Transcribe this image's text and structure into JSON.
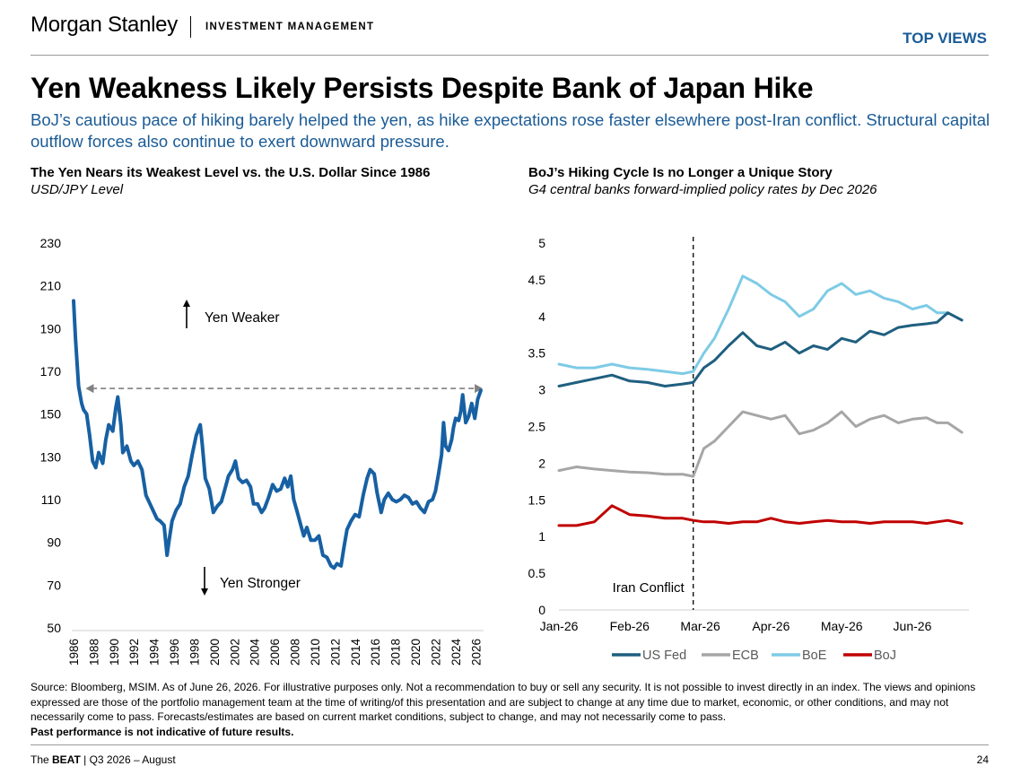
{
  "header": {
    "logo_brand": "Morgan Stanley",
    "logo_division": "INVESTMENT MANAGEMENT",
    "section_tag": "TOP VIEWS"
  },
  "headline": "Yen Weakness Likely Persists Despite Bank of Japan Hike",
  "subheadline": "BoJ’s cautious pace of hiking barely helped the yen, as hike expectations rose faster elsewhere post-Iran conflict. Structural capital outflow forces also continue to exert downward pressure.",
  "colors": {
    "accent": "#1a5b96",
    "yen_line": "#1760a3",
    "us_fed": "#1f5f7f",
    "ecb": "#a6a6a6",
    "boe": "#7ecbe6",
    "boj": "#c00000"
  },
  "chart_data": [
    {
      "type": "line",
      "title": "The Yen Nears its Weakest Level vs. the U.S. Dollar Since 1986",
      "subtitle": "USD/JPY Level",
      "xlabel": "",
      "ylabel": "",
      "ylim": [
        50,
        230
      ],
      "y_ticks": [
        "230",
        "210",
        "190",
        "170",
        "150",
        "130",
        "110",
        "90",
        "70",
        "50"
      ],
      "x_ticks": [
        "1986",
        "1988",
        "1990",
        "1992",
        "1994",
        "1996",
        "1998",
        "2000",
        "2002",
        "2004",
        "2006",
        "2008",
        "2010",
        "2012",
        "2014",
        "2016",
        "2018",
        "2020",
        "2022",
        "2024",
        "2026"
      ],
      "annotations": {
        "up": "Yen Weaker",
        "down": "Yen Stronger"
      },
      "reference_line": 162,
      "x": [
        1986.0,
        1986.2,
        1986.5,
        1986.8,
        1987.0,
        1987.3,
        1987.6,
        1987.9,
        1988.2,
        1988.5,
        1988.9,
        1989.2,
        1989.5,
        1989.9,
        1990.2,
        1990.4,
        1990.7,
        1990.9,
        1991.3,
        1991.7,
        1992.0,
        1992.4,
        1992.8,
        1993.2,
        1993.6,
        1993.9,
        1994.3,
        1994.6,
        1995.0,
        1995.3,
        1995.5,
        1995.8,
        1996.2,
        1996.6,
        1997.0,
        1997.4,
        1997.8,
        1998.2,
        1998.6,
        1998.8,
        1999.1,
        1999.5,
        1999.9,
        2000.3,
        2000.7,
        2001.0,
        2001.4,
        2001.8,
        2002.1,
        2002.4,
        2002.8,
        2003.2,
        2003.6,
        2003.9,
        2004.3,
        2004.7,
        2005.0,
        2005.4,
        2005.8,
        2006.2,
        2006.6,
        2007.0,
        2007.3,
        2007.6,
        2007.9,
        2008.2,
        2008.6,
        2008.9,
        2009.2,
        2009.6,
        2010.0,
        2010.4,
        2010.8,
        2011.2,
        2011.6,
        2011.9,
        2012.2,
        2012.6,
        2012.9,
        2013.2,
        2013.6,
        2014.0,
        2014.4,
        2014.8,
        2015.2,
        2015.5,
        2015.9,
        2016.2,
        2016.6,
        2016.9,
        2017.3,
        2017.7,
        2018.1,
        2018.5,
        2018.9,
        2019.3,
        2019.7,
        2020.1,
        2020.5,
        2020.9,
        2021.3,
        2021.7,
        2022.0,
        2022.3,
        2022.6,
        2022.8,
        2023.0,
        2023.3,
        2023.6,
        2023.8,
        2024.0,
        2024.3,
        2024.5,
        2024.7,
        2025.0,
        2025.3,
        2025.6,
        2025.9,
        2026.2,
        2026.5
      ],
      "y": [
        203,
        185,
        163,
        155,
        152,
        150,
        140,
        128,
        125,
        132,
        127,
        138,
        145,
        142,
        153,
        158,
        145,
        132,
        135,
        128,
        126,
        128,
        124,
        112,
        108,
        105,
        101,
        100,
        98,
        84,
        91,
        100,
        105,
        108,
        116,
        121,
        131,
        140,
        145,
        136,
        120,
        115,
        104,
        107,
        109,
        114,
        121,
        124,
        128,
        120,
        118,
        119,
        116,
        108,
        108,
        104,
        106,
        111,
        117,
        114,
        115,
        120,
        116,
        121,
        110,
        105,
        98,
        93,
        97,
        91,
        91,
        93,
        84,
        83,
        79,
        78,
        80,
        79,
        88,
        96,
        100,
        103,
        102,
        112,
        120,
        124,
        122,
        113,
        104,
        110,
        113,
        110,
        109,
        110,
        112,
        111,
        108,
        109,
        106,
        104,
        109,
        110,
        114,
        122,
        131,
        146,
        135,
        133,
        138,
        144,
        148,
        147,
        151,
        159,
        146,
        149,
        155,
        148,
        157,
        161
      ]
    },
    {
      "type": "line",
      "title": "BoJ’s Hiking Cycle Is no Longer a Unique Story",
      "subtitle": "G4 central banks forward-implied policy rates by Dec 2026",
      "xlabel": "",
      "ylabel": "",
      "ylim": [
        0,
        5
      ],
      "y_ticks": [
        "5",
        "4.5",
        "4",
        "3.5",
        "3",
        "2.5",
        "2",
        "1.5",
        "1",
        "0.5",
        "0"
      ],
      "categories": [
        "Jan-26",
        "Feb-26",
        "Mar-26",
        "Apr-26",
        "May-26",
        "Jun-26"
      ],
      "event": {
        "label": "Iran Conflict",
        "x": 1.9
      },
      "legend_placement": "bottom",
      "series": [
        {
          "name": "US Fed",
          "x": [
            0,
            0.25,
            0.5,
            0.75,
            1.0,
            1.25,
            1.5,
            1.75,
            1.9,
            2.05,
            2.2,
            2.4,
            2.6,
            2.8,
            3.0,
            3.2,
            3.4,
            3.6,
            3.8,
            4.0,
            4.2,
            4.4,
            4.6,
            4.8,
            5.0,
            5.2,
            5.35,
            5.5,
            5.7
          ],
          "values": [
            3.05,
            3.1,
            3.15,
            3.2,
            3.12,
            3.1,
            3.05,
            3.08,
            3.1,
            3.3,
            3.4,
            3.6,
            3.78,
            3.6,
            3.55,
            3.65,
            3.5,
            3.6,
            3.55,
            3.7,
            3.65,
            3.8,
            3.75,
            3.85,
            3.88,
            3.9,
            3.92,
            4.05,
            3.95
          ]
        },
        {
          "name": "ECB",
          "x": [
            0,
            0.25,
            0.5,
            0.75,
            1.0,
            1.25,
            1.5,
            1.75,
            1.9,
            2.05,
            2.2,
            2.4,
            2.6,
            2.8,
            3.0,
            3.2,
            3.4,
            3.6,
            3.8,
            4.0,
            4.2,
            4.4,
            4.6,
            4.8,
            5.0,
            5.2,
            5.35,
            5.5,
            5.7
          ],
          "values": [
            1.9,
            1.95,
            1.92,
            1.9,
            1.88,
            1.87,
            1.85,
            1.85,
            1.82,
            2.2,
            2.3,
            2.5,
            2.7,
            2.65,
            2.6,
            2.65,
            2.4,
            2.45,
            2.55,
            2.7,
            2.5,
            2.6,
            2.65,
            2.55,
            2.6,
            2.62,
            2.55,
            2.55,
            2.42
          ]
        },
        {
          "name": "BoE",
          "x": [
            0,
            0.25,
            0.5,
            0.75,
            1.0,
            1.25,
            1.5,
            1.75,
            1.9,
            2.05,
            2.2,
            2.4,
            2.6,
            2.8,
            3.0,
            3.2,
            3.4,
            3.6,
            3.8,
            4.0,
            4.2,
            4.4,
            4.6,
            4.8,
            5.0,
            5.2,
            5.35,
            5.5,
            5.7
          ],
          "values": [
            3.35,
            3.3,
            3.3,
            3.35,
            3.3,
            3.28,
            3.25,
            3.22,
            3.25,
            3.5,
            3.7,
            4.1,
            4.55,
            4.45,
            4.3,
            4.2,
            4.0,
            4.1,
            4.35,
            4.45,
            4.3,
            4.35,
            4.25,
            4.2,
            4.1,
            4.15,
            4.05,
            4.05,
            3.95
          ]
        },
        {
          "name": "BoJ",
          "x": [
            0,
            0.25,
            0.5,
            0.75,
            1.0,
            1.25,
            1.5,
            1.75,
            1.9,
            2.05,
            2.2,
            2.4,
            2.6,
            2.8,
            3.0,
            3.2,
            3.4,
            3.6,
            3.8,
            4.0,
            4.2,
            4.4,
            4.6,
            4.8,
            5.0,
            5.2,
            5.35,
            5.5,
            5.7
          ],
          "values": [
            1.15,
            1.15,
            1.2,
            1.42,
            1.3,
            1.28,
            1.25,
            1.25,
            1.22,
            1.2,
            1.2,
            1.18,
            1.2,
            1.2,
            1.25,
            1.2,
            1.18,
            1.2,
            1.22,
            1.2,
            1.2,
            1.18,
            1.2,
            1.2,
            1.2,
            1.18,
            1.2,
            1.22,
            1.18
          ]
        }
      ]
    }
  ],
  "source_text": "Source: Bloomberg, MSIM. As of June 26, 2026. For illustrative purposes only. Not a recommendation to buy or sell any security. It is not possible to invest directly in an index. The views and opinions expressed are those of the portfolio management team at the time of writing/of this presentation and are subject to change at any time due to market, economic, or other conditions, and may not necessarily come to pass.  Forecasts/estimates are based on current market conditions, subject to change, and may not necessarily come to pass.",
  "source_bold": "Past performance is not indicative of future results.",
  "footer": {
    "prefix": "The ",
    "brand": "BEAT",
    "rest": " | Q3 2026 – August",
    "page": "24"
  }
}
